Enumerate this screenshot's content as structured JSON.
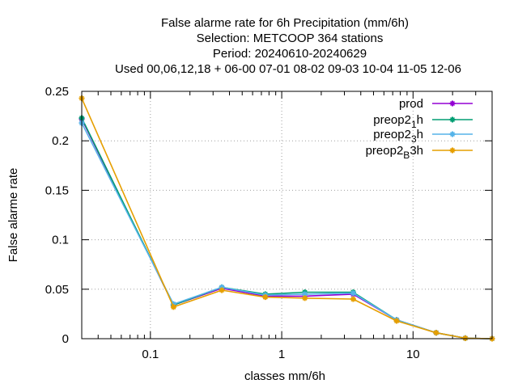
{
  "chart_data": {
    "type": "line",
    "title_lines": [
      "False alarme rate  for 6h Precipitation (mm/6h)",
      "Selection: METCOOP    364 stations",
      "Period: 20240610-20240629",
      "Used  00,06,12,18 + 06-00 07-01 08-02 09-03 10-04 11-05 12-06"
    ],
    "xlabel": "classes mm/6h",
    "ylabel": "False alarme rate",
    "x_scale": "log",
    "xlim": [
      0.03,
      40
    ],
    "ylim": [
      0,
      0.25
    ],
    "x_ticks": [
      {
        "value": 0.1,
        "label": "0.1"
      },
      {
        "value": 1,
        "label": "1"
      },
      {
        "value": 10,
        "label": "10"
      }
    ],
    "y_ticks": [
      {
        "value": 0,
        "label": "0"
      },
      {
        "value": 0.05,
        "label": "0.05"
      },
      {
        "value": 0.1,
        "label": "0.1"
      },
      {
        "value": 0.15,
        "label": "0.15"
      },
      {
        "value": 0.2,
        "label": "0.2"
      },
      {
        "value": 0.25,
        "label": "0.25"
      }
    ],
    "grid": true,
    "legend_position": "top-right",
    "x": [
      0.03,
      0.15,
      0.35,
      0.75,
      1.5,
      3.5,
      7.5,
      15,
      25,
      40
    ],
    "series": [
      {
        "name": "prod",
        "color": "#9400d3",
        "marker": "cross",
        "values": [
          0.222,
          0.034,
          0.051,
          0.043,
          0.043,
          0.045,
          0.019,
          0.006,
          0.0005,
          0.0
        ]
      },
      {
        "name_parts": [
          "preop2",
          "1",
          "h"
        ],
        "color": "#009e73",
        "marker": "cross",
        "values": [
          0.223,
          0.034,
          0.052,
          0.045,
          0.047,
          0.047,
          0.019,
          0.006,
          0.0005,
          0.0
        ]
      },
      {
        "name_parts": [
          "preop2",
          "3",
          "h"
        ],
        "color": "#56b4e9",
        "marker": "cross",
        "values": [
          0.218,
          0.035,
          0.052,
          0.044,
          0.045,
          0.046,
          0.019,
          0.006,
          0.0005,
          0.0
        ]
      },
      {
        "name_parts": [
          "preop2",
          "B",
          "3h"
        ],
        "color": "#e69f00",
        "marker": "cross",
        "values": [
          0.243,
          0.032,
          0.049,
          0.042,
          0.041,
          0.04,
          0.018,
          0.006,
          0.0005,
          0.0
        ]
      }
    ]
  }
}
